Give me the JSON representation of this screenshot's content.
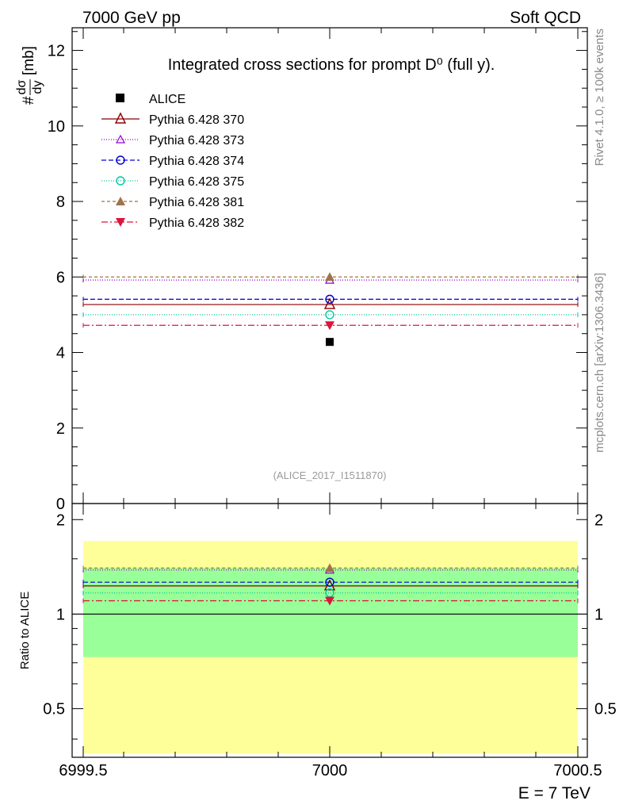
{
  "header": {
    "left": "7000 GeV pp",
    "right": "Soft QCD"
  },
  "side_labels": {
    "top": "Rivet 4.1.0, ≥ 100k events",
    "bottom": "mcplots.cern.ch [arXiv:1306.3436]"
  },
  "chart_data": [
    {
      "type": "line",
      "panel": "main",
      "title": "Integrated cross sections for prompt D⁰ (full y).",
      "ylabel": "#dσ/dy [mb]",
      "ylabel_parts": {
        "prefix": "#",
        "num": "dσ",
        "den": "dy",
        "unit": "[mb]"
      },
      "xlim": [
        6999.5,
        7000.5
      ],
      "ylim": [
        0,
        12.6
      ],
      "yticks": [
        0,
        2,
        4,
        6,
        8,
        10,
        12
      ],
      "ytick_labels": [
        "0",
        "2",
        "4",
        "6",
        "8",
        "10",
        "12"
      ],
      "watermark": "(ALICE_2017_I1511870)",
      "data_point": {
        "name": "ALICE",
        "x": 7000,
        "y": 4.28
      },
      "series": [
        {
          "name": "Pythia 6.428 370",
          "x": [
            6999.5,
            7000.5
          ],
          "values": [
            5.27,
            5.27
          ],
          "marker_y": 5.27,
          "color": "#8b0000",
          "dash": "",
          "marker": "triangle-open"
        },
        {
          "name": "Pythia 6.428 373",
          "x": [
            6999.5,
            7000.5
          ],
          "values": [
            5.92,
            5.92
          ],
          "marker_y": 5.92,
          "color": "#9400d3",
          "dash": "1,2",
          "marker": "triangle-open-small"
        },
        {
          "name": "Pythia 6.428 374",
          "x": [
            6999.5,
            7000.5
          ],
          "values": [
            5.41,
            5.41
          ],
          "marker_y": 5.41,
          "color": "#0000cd",
          "dash": "6,3",
          "marker": "circle-open"
        },
        {
          "name": "Pythia 6.428 375",
          "x": [
            6999.5,
            7000.5
          ],
          "values": [
            5.0,
            5.0
          ],
          "marker_y": 5.0,
          "color": "#00c8a0",
          "dash": "1,2",
          "marker": "circle-open"
        },
        {
          "name": "Pythia 6.428 381",
          "x": [
            6999.5,
            7000.5
          ],
          "values": [
            6.0,
            6.0
          ],
          "marker_y": 6.0,
          "color": "#a0724a",
          "dash": "4,3",
          "marker": "triangle-filled"
        },
        {
          "name": "Pythia 6.428 382",
          "x": [
            6999.5,
            7000.5
          ],
          "values": [
            4.72,
            4.72
          ],
          "marker_y": 4.72,
          "color": "#dc143c",
          "dash": "8,3,2,3",
          "marker": "triangle-down-filled"
        }
      ]
    },
    {
      "type": "line",
      "panel": "ratio",
      "ylabel": "Ratio to ALICE",
      "xlabel": "E = 7 TeV",
      "xlim": [
        6999.5,
        7000.5
      ],
      "ylim": [
        0.35,
        2.25
      ],
      "xticks": [
        6999.5,
        7000,
        7000.5
      ],
      "xtick_labels": [
        "6999.5",
        "7000",
        "7000.5"
      ],
      "yticks": [
        0.5,
        1,
        2
      ],
      "ytick_labels": [
        "0.5",
        "1",
        "2"
      ],
      "bands": [
        {
          "name": "yellow-band",
          "lo": 0.36,
          "hi": 1.71,
          "color": "#ffff99"
        },
        {
          "name": "green-band",
          "lo": 0.73,
          "hi": 1.4,
          "color": "#99ff99"
        }
      ],
      "reference": 1,
      "series": [
        {
          "name": "Pythia 6.428 370",
          "values": [
            1.23,
            1.23
          ],
          "marker_y": 1.23,
          "color": "#8b0000",
          "dash": "",
          "marker": "triangle-open"
        },
        {
          "name": "Pythia 6.428 373",
          "values": [
            1.382,
            1.382
          ],
          "marker_y": 1.382,
          "color": "#9400d3",
          "dash": "1,2",
          "marker": "triangle-open-small"
        },
        {
          "name": "Pythia 6.428 374",
          "values": [
            1.264,
            1.264
          ],
          "marker_y": 1.264,
          "color": "#0000cd",
          "dash": "6,3",
          "marker": "circle-open"
        },
        {
          "name": "Pythia 6.428 375",
          "values": [
            1.168,
            1.168
          ],
          "marker_y": 1.168,
          "color": "#00c8a0",
          "dash": "1,2",
          "marker": "circle-open"
        },
        {
          "name": "Pythia 6.428 381",
          "values": [
            1.402,
            1.402
          ],
          "marker_y": 1.402,
          "color": "#a0724a",
          "dash": "4,3",
          "marker": "triangle-filled"
        },
        {
          "name": "Pythia 6.428 382",
          "values": [
            1.103,
            1.103
          ],
          "marker_y": 1.103,
          "color": "#dc143c",
          "dash": "8,3,2,3",
          "marker": "triangle-down-filled"
        }
      ]
    }
  ]
}
